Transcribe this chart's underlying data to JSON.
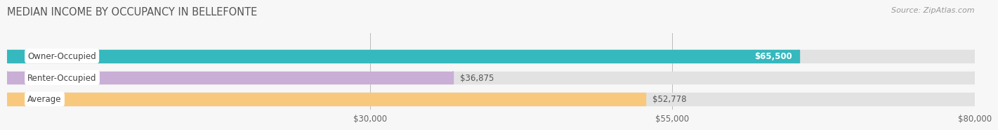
{
  "title": "MEDIAN INCOME BY OCCUPANCY IN BELLEFONTE",
  "source": "Source: ZipAtlas.com",
  "categories": [
    "Owner-Occupied",
    "Renter-Occupied",
    "Average"
  ],
  "values": [
    65500,
    36875,
    52778
  ],
  "value_labels": [
    "$65,500",
    "$36,875",
    "$52,778"
  ],
  "bar_colors": [
    "#35b8be",
    "#c9aed6",
    "#f8c97d"
  ],
  "background_color": "#f7f7f7",
  "bar_bg_color": "#e2e2e2",
  "xmin": 0,
  "xmax": 80000,
  "xticks": [
    30000,
    55000,
    80000
  ],
  "xtick_labels": [
    "$30,000",
    "$55,000",
    "$80,000"
  ],
  "title_fontsize": 10.5,
  "label_fontsize": 8.5,
  "value_fontsize": 8.5,
  "source_fontsize": 8
}
